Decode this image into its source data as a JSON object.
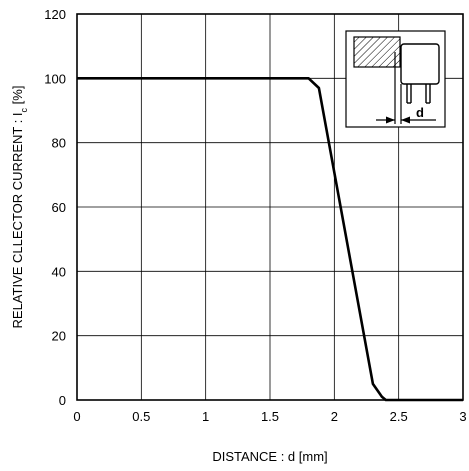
{
  "chart_data": {
    "type": "line",
    "title": "",
    "xlabel": "DISTANCE : d [mm]",
    "ylabel": {
      "prefix": "RELATIVE CLLECTOR CURRENT : I",
      "subscript": "c",
      "suffix": " [%]"
    },
    "xlim": [
      0,
      3
    ],
    "ylim": [
      0,
      120
    ],
    "x_ticks": [
      0,
      0.5,
      1,
      1.5,
      2,
      2.5,
      3
    ],
    "x_tick_labels": [
      "0",
      "0.5",
      "1",
      "1.5",
      "2",
      "2.5",
      "3"
    ],
    "y_ticks": [
      0,
      20,
      40,
      60,
      80,
      100,
      120
    ],
    "y_tick_labels": [
      "0",
      "20",
      "40",
      "60",
      "80",
      "100",
      "120"
    ],
    "grid": true,
    "series": [
      {
        "x": [
          0,
          1.8,
          1.88,
          2.3,
          2.37,
          2.4,
          3.0
        ],
        "y": [
          100,
          100,
          97,
          5,
          1,
          0,
          0
        ]
      }
    ],
    "inset": {
      "label": "d",
      "icon": "sensor-distance-diagram-icon"
    }
  }
}
